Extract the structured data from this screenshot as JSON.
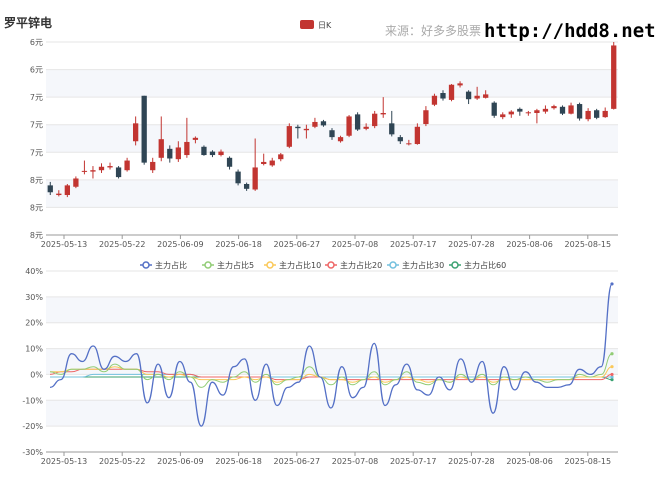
{
  "header": {
    "stock_name": "罗平锌电",
    "source": "来源：好多多股票",
    "url": "http://hdd8.net"
  },
  "colors": {
    "up": "#c23531",
    "down": "#2f4554",
    "band": "#f5f7fb",
    "grid": "#e6e6e6"
  },
  "chart_data": [
    {
      "type": "candlestick",
      "legend": [
        "日K"
      ],
      "legend_placement": "top-center",
      "y_tick_labels": [
        "6元",
        "6元",
        "7元",
        "7元",
        "7元",
        "8元",
        "8元",
        "8元"
      ],
      "ylim": [
        5.9,
        8.7
      ],
      "x_tick_labels": [
        "2025-05-13",
        "2025-05-22",
        "2025-06-09",
        "2025-06-18",
        "2025-06-27",
        "2025-07-08",
        "2025-07-17",
        "2025-07-28",
        "2025-08-06",
        "2025-08-15"
      ],
      "candles": [
        [
          6.62,
          6.52,
          6.67,
          6.48
        ],
        [
          6.48,
          6.5,
          6.55,
          6.46
        ],
        [
          6.48,
          6.62,
          6.64,
          6.45
        ],
        [
          6.6,
          6.72,
          6.75,
          6.58
        ],
        [
          6.82,
          6.83,
          6.98,
          6.78
        ],
        [
          6.82,
          6.84,
          6.9,
          6.72
        ],
        [
          6.84,
          6.89,
          6.94,
          6.8
        ],
        [
          6.88,
          6.9,
          6.95,
          6.85
        ],
        [
          6.88,
          6.74,
          6.9,
          6.72
        ],
        [
          6.84,
          6.98,
          7.02,
          6.82
        ],
        [
          7.26,
          7.52,
          7.62,
          7.2
        ],
        [
          7.92,
          6.95,
          7.92,
          6.92
        ],
        [
          6.84,
          6.96,
          7.02,
          6.8
        ],
        [
          7.02,
          7.29,
          7.62,
          6.97
        ],
        [
          7.15,
          7.01,
          7.2,
          6.95
        ],
        [
          7.0,
          7.17,
          7.26,
          6.96
        ],
        [
          7.06,
          7.25,
          7.6,
          7.02
        ],
        [
          7.28,
          7.31,
          7.33,
          7.23
        ],
        [
          7.18,
          7.06,
          7.2,
          7.05
        ],
        [
          7.11,
          7.06,
          7.13,
          7.03
        ],
        [
          7.06,
          7.11,
          7.14,
          7.04
        ],
        [
          7.02,
          6.89,
          7.04,
          6.85
        ],
        [
          6.82,
          6.65,
          6.85,
          6.62
        ],
        [
          6.64,
          6.57,
          6.66,
          6.54
        ],
        [
          6.56,
          6.88,
          7.3,
          6.54
        ],
        [
          6.93,
          6.96,
          7.08,
          6.91
        ],
        [
          6.91,
          6.98,
          7.02,
          6.89
        ],
        [
          7.0,
          7.07,
          7.09,
          6.97
        ],
        [
          7.18,
          7.48,
          7.52,
          7.16
        ],
        [
          7.47,
          7.45,
          7.5,
          7.3
        ],
        [
          7.42,
          7.44,
          7.5,
          7.3
        ],
        [
          7.47,
          7.54,
          7.6,
          7.45
        ],
        [
          7.55,
          7.49,
          7.57,
          7.47
        ],
        [
          7.42,
          7.32,
          7.45,
          7.28
        ],
        [
          7.26,
          7.32,
          7.34,
          7.24
        ],
        [
          7.34,
          7.62,
          7.64,
          7.32
        ],
        [
          7.65,
          7.43,
          7.68,
          7.41
        ],
        [
          7.44,
          7.47,
          7.52,
          7.42
        ],
        [
          7.48,
          7.66,
          7.7,
          7.45
        ],
        [
          7.65,
          7.67,
          7.9,
          7.6
        ],
        [
          7.52,
          7.36,
          7.7,
          7.33
        ],
        [
          7.32,
          7.26,
          7.35,
          7.22
        ],
        [
          7.22,
          7.23,
          7.28,
          7.2
        ],
        [
          7.22,
          7.47,
          7.52,
          7.21
        ],
        [
          7.51,
          7.71,
          7.77,
          7.48
        ],
        [
          7.79,
          7.92,
          7.95,
          7.77
        ],
        [
          7.96,
          7.88,
          8.0,
          7.85
        ],
        [
          7.86,
          8.08,
          8.09,
          7.84
        ],
        [
          8.07,
          8.1,
          8.13,
          8.04
        ],
        [
          7.98,
          7.87,
          8.0,
          7.8
        ],
        [
          7.88,
          7.92,
          8.05,
          7.86
        ],
        [
          7.89,
          7.94,
          8.0,
          7.88
        ],
        [
          7.82,
          7.63,
          7.84,
          7.6
        ],
        [
          7.61,
          7.65,
          7.68,
          7.58
        ],
        [
          7.65,
          7.69,
          7.71,
          7.6
        ],
        [
          7.73,
          7.69,
          7.75,
          7.63
        ],
        [
          7.68,
          7.68,
          7.7,
          7.63
        ],
        [
          7.67,
          7.71,
          7.73,
          7.52
        ],
        [
          7.69,
          7.73,
          7.78,
          7.66
        ],
        [
          7.74,
          7.77,
          7.79,
          7.72
        ],
        [
          7.76,
          7.66,
          7.78,
          7.64
        ],
        [
          7.66,
          7.78,
          7.82,
          7.65
        ],
        [
          7.8,
          7.59,
          7.82,
          7.56
        ],
        [
          7.58,
          7.7,
          7.74,
          7.55
        ],
        [
          7.71,
          7.6,
          7.73,
          7.58
        ],
        [
          7.61,
          7.7,
          7.75,
          7.6
        ],
        [
          7.73,
          8.65,
          8.7,
          7.72
        ]
      ]
    },
    {
      "type": "line",
      "legend": [
        "主力占比",
        "主力占比5",
        "主力占比10",
        "主力占比20",
        "主力占比30",
        "主力占比60"
      ],
      "legend_placement": "top-center",
      "y_tick_labels": [
        "40%",
        "30%",
        "20%",
        "10%",
        "0%",
        "-10%",
        "-20%",
        "-30%"
      ],
      "ylim": [
        -30,
        40
      ],
      "x_tick_labels": [
        "2025-05-13",
        "2025-05-22",
        "2025-06-09",
        "2025-06-18",
        "2025-06-27",
        "2025-07-08",
        "2025-07-17",
        "2025-07-28",
        "2025-08-06",
        "2025-08-15"
      ],
      "series": [
        {
          "name": "主力占比",
          "color": "#5470c6",
          "values": [
            -5,
            -2,
            8,
            5,
            11,
            2,
            7,
            5,
            8,
            -11,
            4,
            -9,
            5,
            -3,
            -20,
            -3,
            -8,
            3,
            6,
            -10,
            4,
            -12,
            -5,
            -3,
            11,
            -1,
            -13,
            3,
            -9,
            -5,
            12,
            -12,
            -4,
            4,
            -6,
            -8,
            -1,
            -6,
            6,
            -3,
            5,
            -15,
            3,
            -6,
            1,
            -3,
            -5,
            -5,
            -4,
            2,
            0,
            3,
            35
          ]
        },
        {
          "name": "主力占比5",
          "color": "#91cc75",
          "values": [
            1,
            0,
            2,
            2,
            3,
            1,
            4,
            2,
            2,
            -2,
            0,
            -2,
            1,
            -1,
            -5,
            -2,
            -3,
            -1,
            1,
            -3,
            0,
            -4,
            -2,
            -1,
            3,
            -1,
            -4,
            -1,
            -4,
            -2,
            1,
            -4,
            -2,
            1,
            -3,
            -4,
            -2,
            -3,
            0,
            -2,
            0,
            -4,
            -1,
            -2,
            -1,
            -2,
            -3,
            -2,
            -2,
            0,
            -1,
            0,
            8
          ]
        },
        {
          "name": "主力占比10",
          "color": "#fac858",
          "values": [
            1,
            1,
            2,
            2,
            2,
            2,
            3,
            2,
            2,
            0,
            0,
            -1,
            0,
            -1,
            -2,
            -2,
            -2,
            -2,
            -1,
            -2,
            -1,
            -3,
            -2,
            -2,
            0,
            -1,
            -2,
            -2,
            -3,
            -2,
            -1,
            -3,
            -2,
            -1,
            -2,
            -3,
            -2,
            -3,
            -1,
            -2,
            -1,
            -3,
            -2,
            -2,
            -2,
            -2,
            -2,
            -2,
            -2,
            -1,
            -1,
            -1,
            3
          ]
        },
        {
          "name": "主力占比20",
          "color": "#ee6666",
          "values": [
            0,
            1,
            1,
            2,
            2,
            2,
            2,
            2,
            2,
            1,
            1,
            0,
            0,
            0,
            -1,
            -1,
            -1,
            -1,
            -1,
            -1,
            -1,
            -2,
            -2,
            -2,
            -1,
            -1,
            -2,
            -2,
            -2,
            -2,
            -2,
            -2,
            -2,
            -2,
            -2,
            -2,
            -2,
            -2,
            -2,
            -2,
            -2,
            -2,
            -2,
            -2,
            -2,
            -2,
            -2,
            -2,
            -2,
            -2,
            -2,
            -2,
            0
          ]
        },
        {
          "name": "主力占比30",
          "color": "#73c0de",
          "values": [
            -1,
            -1,
            -1,
            -1,
            0,
            0,
            0,
            0,
            0,
            0,
            0,
            0,
            0,
            0,
            -1,
            -1,
            -1,
            -1,
            -1,
            -1,
            -1,
            -1,
            -1,
            -1,
            -1,
            -1,
            -1,
            -1,
            -1,
            -1,
            -1,
            -1,
            -1,
            -1,
            -1,
            -1,
            -1,
            -1,
            -1,
            -1,
            -1,
            -1,
            -1,
            -1,
            -1,
            -1,
            -1,
            -1,
            -1,
            -1,
            -1,
            -1,
            -1
          ]
        },
        {
          "name": "主力占比60",
          "color": "#3ba272",
          "values": [
            -1,
            -1,
            -1,
            -1,
            -1,
            -1,
            -1,
            -1,
            -1,
            -1,
            -1,
            -1,
            -1,
            -1,
            -1,
            -1,
            -1,
            -1,
            -1,
            -1,
            -1,
            -1,
            -1,
            -1,
            -1,
            -1,
            -1,
            -1,
            -1,
            -1,
            -1,
            -1,
            -1,
            -1,
            -1,
            -1,
            -1,
            -1,
            -1,
            -1,
            -1,
            -1,
            -1,
            -1,
            -1,
            -1,
            -1,
            -1,
            -1,
            -1,
            -1,
            -1,
            -2
          ]
        }
      ]
    }
  ]
}
